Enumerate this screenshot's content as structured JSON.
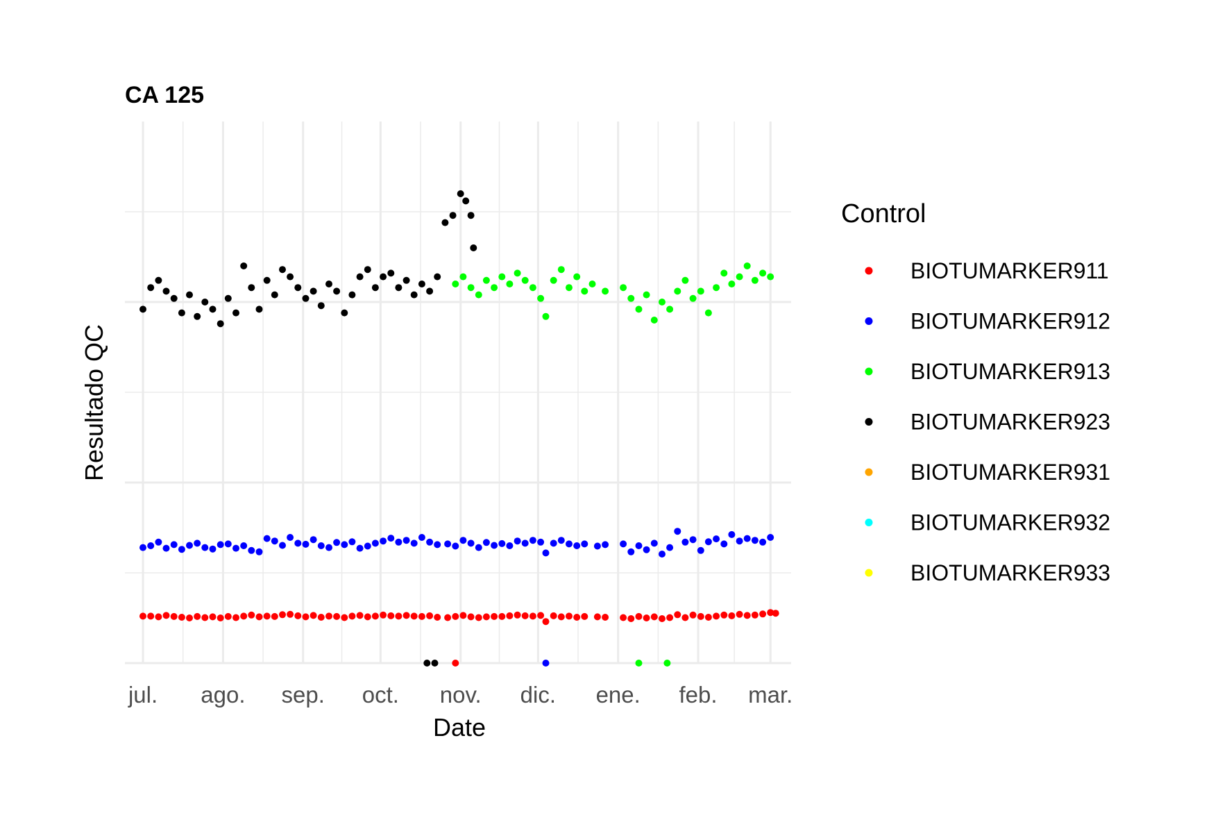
{
  "chart_data": {
    "type": "scatter",
    "title": "CA 125",
    "xlabel": "Date",
    "ylabel": "Resultado QC",
    "x_type": "date",
    "xlim": [
      "2021-06-24",
      "2022-03-09"
    ],
    "ylim": [
      0,
      150
    ],
    "y_tick_labels_shown": false,
    "grid": true,
    "x_ticks": [
      {
        "date": "2021-07-01",
        "label": "jul."
      },
      {
        "date": "2021-08-01",
        "label": "ago."
      },
      {
        "date": "2021-09-01",
        "label": "sep."
      },
      {
        "date": "2021-10-01",
        "label": "oct."
      },
      {
        "date": "2021-11-01",
        "label": "nov."
      },
      {
        "date": "2021-12-01",
        "label": "dic."
      },
      {
        "date": "2022-01-01",
        "label": "ene."
      },
      {
        "date": "2022-02-01",
        "label": "feb."
      },
      {
        "date": "2022-03-01",
        "label": "mar."
      }
    ],
    "legend": {
      "title": "Control",
      "position": "right",
      "entries": [
        {
          "label": "BIOTUMARKER911",
          "color": "#ff0000"
        },
        {
          "label": "BIOTUMARKER912",
          "color": "#0000ff"
        },
        {
          "label": "BIOTUMARKER913",
          "color": "#00ff00"
        },
        {
          "label": "BIOTUMARKER923",
          "color": "#000000"
        },
        {
          "label": "BIOTUMARKER931",
          "color": "#ffa500"
        },
        {
          "label": "BIOTUMARKER932",
          "color": "#00ffff"
        },
        {
          "label": "BIOTUMARKER933",
          "color": "#ffff00"
        }
      ]
    },
    "series": [
      {
        "name": "BIOTUMARKER911",
        "color": "#ff0000",
        "points": [
          [
            "2021-07-01",
            13
          ],
          [
            "2021-07-04",
            13
          ],
          [
            "2021-07-07",
            12.8
          ],
          [
            "2021-07-10",
            13.2
          ],
          [
            "2021-07-13",
            12.9
          ],
          [
            "2021-07-16",
            12.7
          ],
          [
            "2021-07-19",
            12.5
          ],
          [
            "2021-07-22",
            12.9
          ],
          [
            "2021-07-25",
            12.6
          ],
          [
            "2021-07-28",
            12.8
          ],
          [
            "2021-07-31",
            12.5
          ],
          [
            "2021-08-03",
            12.9
          ],
          [
            "2021-08-06",
            12.6
          ],
          [
            "2021-08-09",
            13
          ],
          [
            "2021-08-12",
            13.3
          ],
          [
            "2021-08-15",
            12.8
          ],
          [
            "2021-08-18",
            13
          ],
          [
            "2021-08-21",
            12.9
          ],
          [
            "2021-08-24",
            13.4
          ],
          [
            "2021-08-27",
            13.5
          ],
          [
            "2021-08-30",
            13.1
          ],
          [
            "2021-09-02",
            12.8
          ],
          [
            "2021-09-05",
            13.2
          ],
          [
            "2021-09-08",
            12.7
          ],
          [
            "2021-09-11",
            13
          ],
          [
            "2021-09-14",
            12.9
          ],
          [
            "2021-09-17",
            12.6
          ],
          [
            "2021-09-20",
            13
          ],
          [
            "2021-09-23",
            13.2
          ],
          [
            "2021-09-26",
            12.8
          ],
          [
            "2021-09-29",
            13
          ],
          [
            "2021-10-02",
            13.3
          ],
          [
            "2021-10-05",
            13.1
          ],
          [
            "2021-10-08",
            13
          ],
          [
            "2021-10-11",
            13.2
          ],
          [
            "2021-10-14",
            13
          ],
          [
            "2021-10-17",
            12.9
          ],
          [
            "2021-10-20",
            13.1
          ],
          [
            "2021-10-23",
            12.7
          ],
          [
            "2021-10-27",
            12.6
          ],
          [
            "2021-10-30",
            12.9
          ],
          [
            "2021-11-02",
            13.2
          ],
          [
            "2021-11-05",
            12.8
          ],
          [
            "2021-11-08",
            12.6
          ],
          [
            "2021-11-11",
            12.8
          ],
          [
            "2021-11-14",
            12.9
          ],
          [
            "2021-11-17",
            12.9
          ],
          [
            "2021-11-20",
            13.1
          ],
          [
            "2021-11-23",
            13.3
          ],
          [
            "2021-11-26",
            13.1
          ],
          [
            "2021-11-29",
            13
          ],
          [
            "2021-12-02",
            13.2
          ],
          [
            "2021-12-04",
            11.5
          ],
          [
            "2021-12-07",
            13.1
          ],
          [
            "2021-12-10",
            12.8
          ],
          [
            "2021-12-13",
            13
          ],
          [
            "2021-12-16",
            12.7
          ],
          [
            "2021-12-19",
            12.9
          ],
          [
            "2021-12-24",
            12.8
          ],
          [
            "2021-12-27",
            12.7
          ],
          [
            "2022-01-03",
            12.6
          ],
          [
            "2022-01-06",
            12.3
          ],
          [
            "2022-01-09",
            12.9
          ],
          [
            "2022-01-12",
            12.5
          ],
          [
            "2022-01-15",
            12.8
          ],
          [
            "2022-01-18",
            12.3
          ],
          [
            "2022-01-21",
            12.6
          ],
          [
            "2022-01-24",
            13.4
          ],
          [
            "2022-01-27",
            12.6
          ],
          [
            "2022-01-30",
            13.3
          ],
          [
            "2022-02-02",
            12.9
          ],
          [
            "2022-02-05",
            12.7
          ],
          [
            "2022-02-08",
            13
          ],
          [
            "2022-02-11",
            13.3
          ],
          [
            "2022-02-14",
            13.1
          ],
          [
            "2022-02-17",
            13.5
          ],
          [
            "2022-02-20",
            13.2
          ],
          [
            "2022-02-23",
            13.3
          ],
          [
            "2022-02-26",
            13.6
          ],
          [
            "2022-03-01",
            14
          ],
          [
            "2022-03-03",
            13.8
          ],
          [
            "2021-10-30",
            0
          ]
        ]
      },
      {
        "name": "BIOTUMARKER912",
        "color": "#0000ff",
        "points": [
          [
            "2021-07-01",
            32
          ],
          [
            "2021-07-04",
            32.5
          ],
          [
            "2021-07-07",
            33.5
          ],
          [
            "2021-07-10",
            31.8
          ],
          [
            "2021-07-13",
            32.8
          ],
          [
            "2021-07-16",
            31.5
          ],
          [
            "2021-07-19",
            32.6
          ],
          [
            "2021-07-22",
            33.2
          ],
          [
            "2021-07-25",
            32
          ],
          [
            "2021-07-28",
            31.6
          ],
          [
            "2021-07-31",
            32.8
          ],
          [
            "2021-08-03",
            33
          ],
          [
            "2021-08-06",
            31.8
          ],
          [
            "2021-08-09",
            32.5
          ],
          [
            "2021-08-12",
            31.2
          ],
          [
            "2021-08-15",
            30.8
          ],
          [
            "2021-08-18",
            34.5
          ],
          [
            "2021-08-21",
            33.8
          ],
          [
            "2021-08-24",
            32.6
          ],
          [
            "2021-08-27",
            34.8
          ],
          [
            "2021-08-30",
            33.2
          ],
          [
            "2021-09-02",
            32.9
          ],
          [
            "2021-09-05",
            34.2
          ],
          [
            "2021-09-08",
            32.5
          ],
          [
            "2021-09-11",
            32
          ],
          [
            "2021-09-14",
            33.4
          ],
          [
            "2021-09-17",
            32.8
          ],
          [
            "2021-09-20",
            33.6
          ],
          [
            "2021-09-23",
            31.8
          ],
          [
            "2021-09-26",
            32.4
          ],
          [
            "2021-09-29",
            33.2
          ],
          [
            "2021-10-02",
            33.8
          ],
          [
            "2021-10-05",
            34.6
          ],
          [
            "2021-10-08",
            33.5
          ],
          [
            "2021-10-11",
            34
          ],
          [
            "2021-10-14",
            33.2
          ],
          [
            "2021-10-17",
            34.8
          ],
          [
            "2021-10-20",
            33.5
          ],
          [
            "2021-10-23",
            32.8
          ],
          [
            "2021-10-27",
            33
          ],
          [
            "2021-10-30",
            32.4
          ],
          [
            "2021-11-02",
            34
          ],
          [
            "2021-11-05",
            33.2
          ],
          [
            "2021-11-08",
            32
          ],
          [
            "2021-11-11",
            33.4
          ],
          [
            "2021-11-14",
            32.6
          ],
          [
            "2021-11-17",
            33.1
          ],
          [
            "2021-11-20",
            32.5
          ],
          [
            "2021-11-23",
            33.8
          ],
          [
            "2021-11-26",
            33.2
          ],
          [
            "2021-11-29",
            34
          ],
          [
            "2021-12-02",
            33.5
          ],
          [
            "2021-12-04",
            30.5
          ],
          [
            "2021-12-07",
            33.2
          ],
          [
            "2021-12-10",
            34
          ],
          [
            "2021-12-13",
            33
          ],
          [
            "2021-12-16",
            32.5
          ],
          [
            "2021-12-19",
            33
          ],
          [
            "2021-12-24",
            32.4
          ],
          [
            "2021-12-27",
            32.8
          ],
          [
            "2022-01-03",
            33
          ],
          [
            "2022-01-06",
            30.8
          ],
          [
            "2022-01-09",
            32.5
          ],
          [
            "2022-01-12",
            31.4
          ],
          [
            "2022-01-15",
            33.2
          ],
          [
            "2022-01-18",
            30.2
          ],
          [
            "2022-01-21",
            32
          ],
          [
            "2022-01-24",
            36.5
          ],
          [
            "2022-01-27",
            33.5
          ],
          [
            "2022-01-30",
            34.2
          ],
          [
            "2022-02-02",
            31.2
          ],
          [
            "2022-02-05",
            33.6
          ],
          [
            "2022-02-08",
            34.4
          ],
          [
            "2022-02-11",
            33
          ],
          [
            "2022-02-14",
            35.6
          ],
          [
            "2022-02-17",
            33.8
          ],
          [
            "2022-02-20",
            34.5
          ],
          [
            "2022-02-23",
            34
          ],
          [
            "2022-02-26",
            33.5
          ],
          [
            "2022-03-01",
            34.8
          ],
          [
            "2021-12-04",
            0
          ]
        ]
      },
      {
        "name": "BIOTUMARKER913",
        "color": "#00ff00",
        "points": [
          [
            "2021-10-30",
            105
          ],
          [
            "2021-11-02",
            107
          ],
          [
            "2021-11-05",
            104
          ],
          [
            "2021-11-08",
            102
          ],
          [
            "2021-11-11",
            106
          ],
          [
            "2021-11-14",
            104
          ],
          [
            "2021-11-17",
            107
          ],
          [
            "2021-11-20",
            105
          ],
          [
            "2021-11-23",
            108
          ],
          [
            "2021-11-26",
            106
          ],
          [
            "2021-11-29",
            104
          ],
          [
            "2021-12-02",
            101
          ],
          [
            "2021-12-04",
            96
          ],
          [
            "2021-12-07",
            106
          ],
          [
            "2021-12-10",
            109
          ],
          [
            "2021-12-13",
            104
          ],
          [
            "2021-12-16",
            107
          ],
          [
            "2021-12-19",
            103
          ],
          [
            "2021-12-22",
            105
          ],
          [
            "2021-12-27",
            103
          ],
          [
            "2022-01-03",
            104
          ],
          [
            "2022-01-06",
            101
          ],
          [
            "2022-01-09",
            98
          ],
          [
            "2022-01-12",
            102
          ],
          [
            "2022-01-15",
            95
          ],
          [
            "2022-01-18",
            100
          ],
          [
            "2022-01-21",
            98
          ],
          [
            "2022-01-24",
            103
          ],
          [
            "2022-01-27",
            106
          ],
          [
            "2022-01-30",
            101
          ],
          [
            "2022-02-02",
            103
          ],
          [
            "2022-02-05",
            97
          ],
          [
            "2022-02-08",
            104
          ],
          [
            "2022-02-11",
            108
          ],
          [
            "2022-02-14",
            105
          ],
          [
            "2022-02-17",
            107
          ],
          [
            "2022-02-20",
            110
          ],
          [
            "2022-02-23",
            106
          ],
          [
            "2022-02-26",
            108
          ],
          [
            "2022-03-01",
            107
          ],
          [
            "2022-01-09",
            0
          ],
          [
            "2022-01-20",
            0
          ]
        ]
      },
      {
        "name": "BIOTUMARKER923",
        "color": "#000000",
        "points": [
          [
            "2021-07-01",
            98
          ],
          [
            "2021-07-04",
            104
          ],
          [
            "2021-07-07",
            106
          ],
          [
            "2021-07-10",
            103
          ],
          [
            "2021-07-13",
            101
          ],
          [
            "2021-07-16",
            97
          ],
          [
            "2021-07-19",
            102
          ],
          [
            "2021-07-22",
            96
          ],
          [
            "2021-07-25",
            100
          ],
          [
            "2021-07-28",
            98
          ],
          [
            "2021-07-31",
            94
          ],
          [
            "2021-08-03",
            101
          ],
          [
            "2021-08-06",
            97
          ],
          [
            "2021-08-09",
            110
          ],
          [
            "2021-08-12",
            104
          ],
          [
            "2021-08-15",
            98
          ],
          [
            "2021-08-18",
            106
          ],
          [
            "2021-08-21",
            102
          ],
          [
            "2021-08-24",
            109
          ],
          [
            "2021-08-27",
            107
          ],
          [
            "2021-08-30",
            104
          ],
          [
            "2021-09-02",
            101
          ],
          [
            "2021-09-05",
            103
          ],
          [
            "2021-09-08",
            99
          ],
          [
            "2021-09-11",
            105
          ],
          [
            "2021-09-14",
            103
          ],
          [
            "2021-09-17",
            97
          ],
          [
            "2021-09-20",
            102
          ],
          [
            "2021-09-23",
            107
          ],
          [
            "2021-09-26",
            109
          ],
          [
            "2021-09-29",
            104
          ],
          [
            "2021-10-02",
            107
          ],
          [
            "2021-10-05",
            108
          ],
          [
            "2021-10-08",
            104
          ],
          [
            "2021-10-11",
            106
          ],
          [
            "2021-10-14",
            102
          ],
          [
            "2021-10-17",
            105
          ],
          [
            "2021-10-20",
            103
          ],
          [
            "2021-10-23",
            107
          ],
          [
            "2021-10-26",
            122
          ],
          [
            "2021-10-29",
            124
          ],
          [
            "2021-11-01",
            130
          ],
          [
            "2021-11-03",
            128
          ],
          [
            "2021-11-05",
            124
          ],
          [
            "2021-11-06",
            115
          ],
          [
            "2021-10-19",
            0
          ],
          [
            "2021-10-22",
            0
          ]
        ]
      }
    ]
  }
}
